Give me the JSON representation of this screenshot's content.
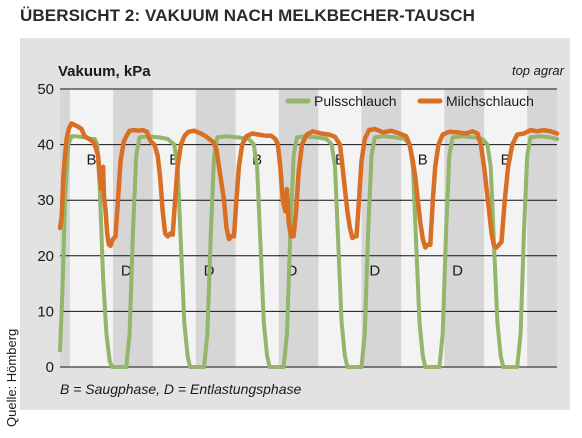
{
  "header": {
    "title": "ÜBERSICHT 2: VAKUUM NACH MELKBECHER-TAUSCH",
    "brand": "top agrar",
    "source": "Quelle: Hömberg",
    "caption": "B = Saugphase, D = Entlastungsphase"
  },
  "colors": {
    "panel": "#e2e2e2",
    "stripe": "#f3f3f3",
    "plot_bg": "#d6d6d6",
    "grid": "#111111",
    "pulsschlauch": "#93b56c",
    "milchschlauch": "#d96f24"
  },
  "chart_data": {
    "type": "line",
    "title": "",
    "ylabel": "Vakuum, kPa",
    "xlabel": "",
    "ylim": [
      0,
      50
    ],
    "yticks": [
      0,
      10,
      20,
      30,
      40,
      50
    ],
    "grid": true,
    "legend_position": "top-right",
    "cycles": 6,
    "x_range": [
      0,
      6
    ],
    "phase_labels": [
      {
        "text": "B",
        "cycle": 0,
        "phase": "B",
        "y": 37.5
      },
      {
        "text": "B",
        "cycle": 1,
        "phase": "B",
        "y": 37.5
      },
      {
        "text": "B",
        "cycle": 2,
        "phase": "B",
        "y": 37.5
      },
      {
        "text": "B",
        "cycle": 3,
        "phase": "B",
        "y": 37.5
      },
      {
        "text": "B",
        "cycle": 4,
        "phase": "B",
        "y": 37.5
      },
      {
        "text": "B",
        "cycle": 5,
        "phase": "B",
        "y": 37.5
      },
      {
        "text": "D",
        "cycle": 0,
        "phase": "D",
        "y": 17.5
      },
      {
        "text": "D",
        "cycle": 1,
        "phase": "D",
        "y": 17.5
      },
      {
        "text": "D",
        "cycle": 2,
        "phase": "D",
        "y": 17.5
      },
      {
        "text": "D",
        "cycle": 3,
        "phase": "D",
        "y": 17.5
      },
      {
        "text": "D",
        "cycle": 4,
        "phase": "D",
        "y": 17.5
      }
    ],
    "series": [
      {
        "name": "Pulsschlauch",
        "points": [
          [
            0.0,
            3
          ],
          [
            0.03,
            14
          ],
          [
            0.06,
            30
          ],
          [
            0.1,
            40
          ],
          [
            0.14,
            41.5
          ],
          [
            0.2,
            41.5
          ],
          [
            0.3,
            41.3
          ],
          [
            0.38,
            41
          ],
          [
            0.42,
            41
          ],
          [
            0.45,
            40
          ],
          [
            0.48,
            32
          ],
          [
            0.52,
            16
          ],
          [
            0.56,
            6
          ],
          [
            0.6,
            1
          ],
          [
            0.63,
            0
          ],
          [
            0.8,
            0
          ],
          [
            0.84,
            6
          ],
          [
            0.88,
            24
          ],
          [
            0.92,
            38
          ],
          [
            0.96,
            41.3
          ],
          [
            1.05,
            41.5
          ],
          [
            1.2,
            41.3
          ],
          [
            1.3,
            41
          ],
          [
            1.38,
            40
          ],
          [
            1.42,
            36
          ],
          [
            1.46,
            22
          ],
          [
            1.5,
            8
          ],
          [
            1.54,
            2
          ],
          [
            1.57,
            0
          ],
          [
            1.74,
            0
          ],
          [
            1.78,
            6
          ],
          [
            1.82,
            24
          ],
          [
            1.86,
            38
          ],
          [
            1.9,
            41.3
          ],
          [
            2.0,
            41.5
          ],
          [
            2.15,
            41.3
          ],
          [
            2.28,
            41
          ],
          [
            2.34,
            40
          ],
          [
            2.38,
            36
          ],
          [
            2.42,
            22
          ],
          [
            2.46,
            8
          ],
          [
            2.5,
            2
          ],
          [
            2.53,
            0
          ],
          [
            2.7,
            0
          ],
          [
            2.74,
            6
          ],
          [
            2.78,
            24
          ],
          [
            2.82,
            38
          ],
          [
            2.86,
            41.3
          ],
          [
            2.95,
            41.5
          ],
          [
            3.1,
            41.3
          ],
          [
            3.22,
            41
          ],
          [
            3.28,
            40
          ],
          [
            3.32,
            36
          ],
          [
            3.36,
            22
          ],
          [
            3.4,
            8
          ],
          [
            3.44,
            2
          ],
          [
            3.47,
            0
          ],
          [
            3.64,
            0
          ],
          [
            3.68,
            6
          ],
          [
            3.72,
            24
          ],
          [
            3.76,
            38
          ],
          [
            3.8,
            41.3
          ],
          [
            3.9,
            41.5
          ],
          [
            4.05,
            41.3
          ],
          [
            4.16,
            41
          ],
          [
            4.22,
            40
          ],
          [
            4.26,
            36
          ],
          [
            4.3,
            22
          ],
          [
            4.34,
            8
          ],
          [
            4.38,
            2
          ],
          [
            4.41,
            0
          ],
          [
            4.58,
            0
          ],
          [
            4.62,
            6
          ],
          [
            4.66,
            24
          ],
          [
            4.7,
            38
          ],
          [
            4.74,
            41.3
          ],
          [
            4.85,
            41.5
          ],
          [
            5.0,
            41.3
          ],
          [
            5.1,
            41
          ],
          [
            5.16,
            40
          ],
          [
            5.2,
            36
          ],
          [
            5.24,
            22
          ],
          [
            5.28,
            8
          ],
          [
            5.32,
            2
          ],
          [
            5.35,
            0
          ],
          [
            5.52,
            0
          ],
          [
            5.56,
            6
          ],
          [
            5.6,
            24
          ],
          [
            5.64,
            38
          ],
          [
            5.68,
            41.3
          ],
          [
            5.8,
            41.5
          ],
          [
            5.92,
            41.3
          ],
          [
            6.0,
            41
          ]
        ]
      },
      {
        "name": "Milchschlauch",
        "points": [
          [
            0.0,
            25
          ],
          [
            0.02,
            27
          ],
          [
            0.04,
            34
          ],
          [
            0.06,
            38
          ],
          [
            0.08,
            41
          ],
          [
            0.11,
            43
          ],
          [
            0.14,
            43.8
          ],
          [
            0.18,
            43.5
          ],
          [
            0.22,
            43.2
          ],
          [
            0.26,
            42.8
          ],
          [
            0.3,
            41.5
          ],
          [
            0.35,
            41
          ],
          [
            0.4,
            40.5
          ],
          [
            0.43,
            39.5
          ],
          [
            0.46,
            38
          ],
          [
            0.48,
            34
          ],
          [
            0.5,
            32
          ],
          [
            0.52,
            36
          ],
          [
            0.53,
            31
          ],
          [
            0.55,
            28
          ],
          [
            0.57,
            24
          ],
          [
            0.59,
            22
          ],
          [
            0.61,
            21.8
          ],
          [
            0.64,
            23
          ],
          [
            0.67,
            23.5
          ],
          [
            0.7,
            30
          ],
          [
            0.73,
            37
          ],
          [
            0.77,
            40.5
          ],
          [
            0.8,
            41.5
          ],
          [
            0.84,
            42.5
          ],
          [
            0.9,
            42.6
          ],
          [
            0.95,
            42.5
          ],
          [
            1.0,
            42.6
          ],
          [
            1.05,
            42.3
          ],
          [
            1.08,
            41
          ],
          [
            1.1,
            40.5
          ],
          [
            1.14,
            40
          ],
          [
            1.18,
            38
          ],
          [
            1.21,
            34
          ],
          [
            1.24,
            28
          ],
          [
            1.27,
            24
          ],
          [
            1.3,
            23.5
          ],
          [
            1.33,
            24
          ],
          [
            1.36,
            23.8
          ],
          [
            1.39,
            30
          ],
          [
            1.42,
            36
          ],
          [
            1.46,
            40
          ],
          [
            1.5,
            41.5
          ],
          [
            1.55,
            42.3
          ],
          [
            1.62,
            42.5
          ],
          [
            1.7,
            42
          ],
          [
            1.76,
            41.5
          ],
          [
            1.8,
            41
          ],
          [
            1.85,
            40.5
          ],
          [
            1.89,
            39
          ],
          [
            1.92,
            36
          ],
          [
            1.95,
            33
          ],
          [
            1.98,
            30
          ],
          [
            2.01,
            25
          ],
          [
            2.04,
            23
          ],
          [
            2.07,
            23.5
          ],
          [
            2.1,
            23.5
          ],
          [
            2.13,
            30
          ],
          [
            2.16,
            36
          ],
          [
            2.2,
            40
          ],
          [
            2.25,
            41.5
          ],
          [
            2.32,
            42
          ],
          [
            2.4,
            41.8
          ],
          [
            2.48,
            41.6
          ],
          [
            2.55,
            41.6
          ],
          [
            2.6,
            41
          ],
          [
            2.63,
            40
          ],
          [
            2.66,
            36
          ],
          [
            2.69,
            30
          ],
          [
            2.72,
            28
          ],
          [
            2.74,
            32
          ],
          [
            2.76,
            26
          ],
          [
            2.79,
            23.5
          ],
          [
            2.82,
            23.5
          ],
          [
            2.85,
            28
          ],
          [
            2.88,
            35
          ],
          [
            2.92,
            40
          ],
          [
            2.98,
            41.8
          ],
          [
            3.05,
            42.4
          ],
          [
            3.15,
            42
          ],
          [
            3.25,
            41.8
          ],
          [
            3.32,
            41.4
          ],
          [
            3.38,
            40
          ],
          [
            3.41,
            36
          ],
          [
            3.44,
            32
          ],
          [
            3.47,
            28
          ],
          [
            3.5,
            25
          ],
          [
            3.53,
            23.2
          ],
          [
            3.56,
            23.5
          ],
          [
            3.58,
            23.5
          ],
          [
            3.61,
            30
          ],
          [
            3.64,
            37
          ],
          [
            3.68,
            41
          ],
          [
            3.73,
            42.6
          ],
          [
            3.8,
            42.8
          ],
          [
            3.9,
            42.2
          ],
          [
            4.0,
            42.5
          ],
          [
            4.1,
            42
          ],
          [
            4.18,
            41.5
          ],
          [
            4.22,
            40
          ],
          [
            4.26,
            37
          ],
          [
            4.29,
            34
          ],
          [
            4.32,
            30
          ],
          [
            4.35,
            26
          ],
          [
            4.38,
            23
          ],
          [
            4.41,
            21.5
          ],
          [
            4.44,
            22
          ],
          [
            4.47,
            22
          ],
          [
            4.5,
            30
          ],
          [
            4.53,
            36
          ],
          [
            4.57,
            40
          ],
          [
            4.62,
            41.8
          ],
          [
            4.7,
            42.3
          ],
          [
            4.8,
            42.2
          ],
          [
            4.9,
            42
          ],
          [
            4.98,
            42.4
          ],
          [
            5.04,
            42
          ],
          [
            5.08,
            40
          ],
          [
            5.12,
            36
          ],
          [
            5.15,
            32
          ],
          [
            5.18,
            28
          ],
          [
            5.21,
            24
          ],
          [
            5.24,
            21.8
          ],
          [
            5.27,
            21.5
          ],
          [
            5.3,
            22
          ],
          [
            5.33,
            22.5
          ],
          [
            5.37,
            30
          ],
          [
            5.41,
            36
          ],
          [
            5.46,
            40
          ],
          [
            5.52,
            41.8
          ],
          [
            5.6,
            42
          ],
          [
            5.68,
            42.6
          ],
          [
            5.76,
            42.4
          ],
          [
            5.84,
            42.6
          ],
          [
            5.92,
            42.4
          ],
          [
            6.0,
            42
          ]
        ]
      }
    ]
  }
}
